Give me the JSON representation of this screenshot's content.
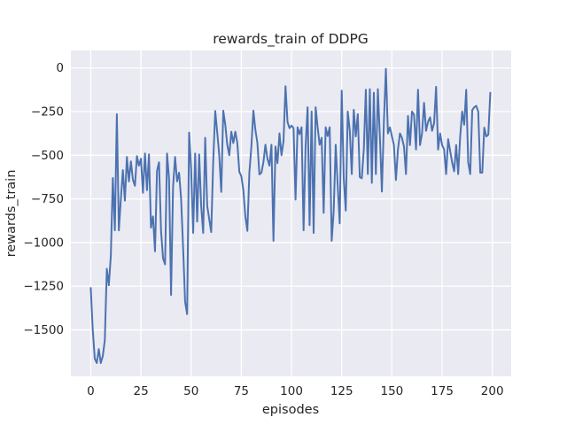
{
  "figure": {
    "background": "#ffffff",
    "title": "rewards_train of DDPG"
  },
  "chart_data": {
    "type": "line",
    "title": "rewards_train of DDPG",
    "xlabel": "episodes",
    "ylabel": "rewards_train",
    "legend": "none",
    "grid": true,
    "x_ticks": [
      0,
      25,
      50,
      75,
      100,
      125,
      150,
      175,
      200
    ],
    "x_tick_labels": [
      "0",
      "25",
      "50",
      "75",
      "100",
      "125",
      "150",
      "175",
      "200"
    ],
    "y_ticks": [
      0,
      -250,
      -500,
      -750,
      -1000,
      -1250,
      -1500
    ],
    "y_tick_labels": [
      "0",
      "−250",
      "−500",
      "−750",
      "−1000",
      "−1250",
      "−1500"
    ],
    "xlim": [
      -9.9,
      209.4
    ],
    "ylim": [
      -1766,
      100
    ],
    "style": {
      "axes_background": "#eaeaf2",
      "grid_color": "#ffffff",
      "line_color": "#4c72b0",
      "text_color": "#262626",
      "figure_background": "#ffffff",
      "line_width": 2
    },
    "series": [
      {
        "name": "rewards_train",
        "x_start": 0,
        "x_step": 1,
        "values": [
          -1260,
          -1500,
          -1665,
          -1690,
          -1610,
          -1690,
          -1650,
          -1560,
          -1150,
          -1245,
          -1075,
          -630,
          -930,
          -265,
          -930,
          -750,
          -585,
          -760,
          -510,
          -650,
          -535,
          -640,
          -675,
          -505,
          -560,
          -520,
          -715,
          -490,
          -700,
          -495,
          -915,
          -850,
          -1050,
          -590,
          -540,
          -930,
          -1090,
          -1125,
          -490,
          -635,
          -1300,
          -680,
          -510,
          -650,
          -600,
          -750,
          -1030,
          -1340,
          -1410,
          -370,
          -580,
          -945,
          -490,
          -880,
          -495,
          -790,
          -945,
          -400,
          -790,
          -865,
          -940,
          -535,
          -247,
          -370,
          -500,
          -710,
          -245,
          -325,
          -440,
          -500,
          -365,
          -430,
          -365,
          -430,
          -595,
          -620,
          -700,
          -850,
          -933,
          -600,
          -450,
          -245,
          -355,
          -430,
          -610,
          -600,
          -540,
          -440,
          -520,
          -560,
          -440,
          -990,
          -450,
          -545,
          -375,
          -500,
          -420,
          -105,
          -310,
          -345,
          -330,
          -345,
          -754,
          -340,
          -380,
          -340,
          -930,
          -450,
          -225,
          -900,
          -250,
          -945,
          -225,
          -340,
          -440,
          -400,
          -830,
          -340,
          -390,
          -340,
          -990,
          -820,
          -440,
          -677,
          -890,
          -130,
          -632,
          -817,
          -250,
          -357,
          -608,
          -240,
          -392,
          -265,
          -625,
          -632,
          -467,
          -125,
          -608,
          -122,
          -658,
          -142,
          -608,
          -122,
          -392,
          -708,
          -308,
          -5,
          -375,
          -340,
          -392,
          -442,
          -642,
          -467,
          -375,
          -400,
          -450,
          -608,
          -275,
          -442,
          -250,
          -267,
          -467,
          -125,
          -442,
          -375,
          -200,
          -360,
          -308,
          -283,
          -360,
          -317,
          -108,
          -467,
          -375,
          -442,
          -467,
          -608,
          -408,
          -475,
          -542,
          -592,
          -442,
          -608,
          -392,
          -250,
          -325,
          -125,
          -542,
          -608,
          -242,
          -225,
          -217,
          -250,
          -600,
          -600,
          -342,
          -392,
          -383,
          -142
        ]
      }
    ]
  }
}
